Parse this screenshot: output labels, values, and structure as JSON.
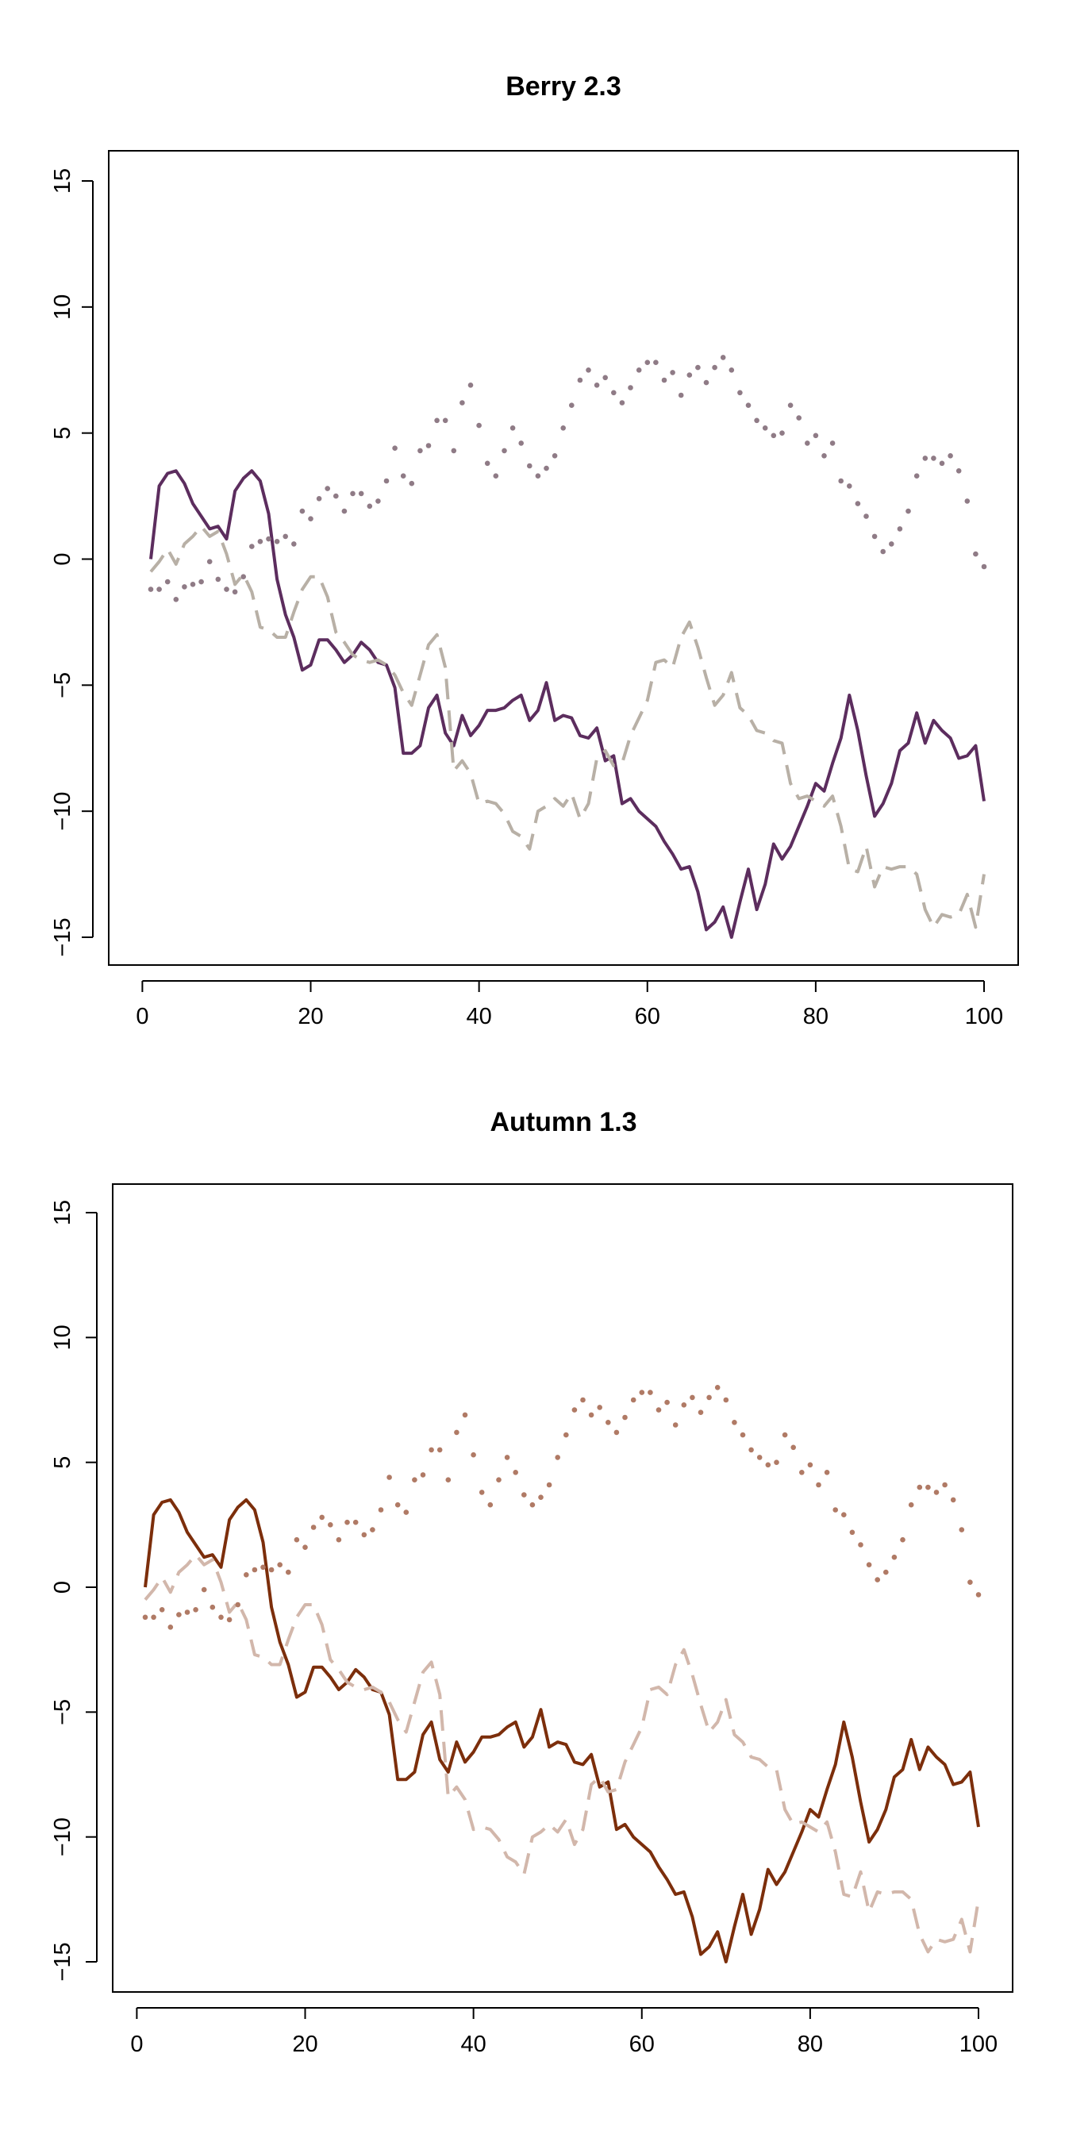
{
  "chart_data": [
    {
      "type": "line",
      "title": "Berry 2.3",
      "xlabel": "",
      "ylabel": "",
      "xlim": [
        1,
        100
      ],
      "ylim": [
        -15,
        15
      ],
      "x_ticks": [
        0,
        20,
        40,
        60,
        80,
        100
      ],
      "y_ticks": [
        -15,
        -10,
        -5,
        0,
        5,
        10,
        15
      ],
      "x_tick_labels": [
        "0",
        "20",
        "40",
        "60",
        "80",
        "100"
      ],
      "y_tick_labels": [
        "−15",
        "−10",
        "−5",
        "0",
        "5",
        "10",
        "15"
      ],
      "grid": false,
      "legend": "none",
      "x": [
        1,
        2,
        3,
        4,
        5,
        6,
        7,
        8,
        9,
        10,
        11,
        12,
        13,
        14,
        15,
        16,
        17,
        18,
        19,
        20,
        21,
        22,
        23,
        24,
        25,
        26,
        27,
        28,
        29,
        30,
        31,
        32,
        33,
        34,
        35,
        36,
        37,
        38,
        39,
        40,
        41,
        42,
        43,
        44,
        45,
        46,
        47,
        48,
        49,
        50,
        51,
        52,
        53,
        54,
        55,
        56,
        57,
        58,
        59,
        60,
        61,
        62,
        63,
        64,
        65,
        66,
        67,
        68,
        69,
        70,
        71,
        72,
        73,
        74,
        75,
        76,
        77,
        78,
        79,
        80,
        81,
        82,
        83,
        84,
        85,
        86,
        87,
        88,
        89,
        90,
        91,
        92,
        93,
        94,
        95,
        96,
        97,
        98,
        99,
        100
      ],
      "series": [
        {
          "style": "solid",
          "color": "#5c2d5e",
          "values": [
            0.0,
            2.9,
            3.4,
            3.5,
            3.0,
            2.2,
            1.7,
            1.2,
            1.3,
            0.8,
            2.7,
            3.2,
            3.5,
            3.1,
            1.8,
            -0.8,
            -2.2,
            -3.1,
            -4.4,
            -4.2,
            -3.2,
            -3.2,
            -3.6,
            -4.1,
            -3.8,
            -3.3,
            -3.6,
            -4.1,
            -4.2,
            -5.1,
            -7.7,
            -7.7,
            -7.4,
            -5.9,
            -5.4,
            -6.9,
            -7.4,
            -6.2,
            -7.0,
            -6.6,
            -6.0,
            -6.0,
            -5.9,
            -5.6,
            -5.4,
            -6.4,
            -6.0,
            -4.9,
            -6.4,
            -6.2,
            -6.3,
            -7.0,
            -7.1,
            -6.7,
            -8.0,
            -7.8,
            -9.7,
            -9.5,
            -10.0,
            -10.3,
            -10.6,
            -11.2,
            -11.7,
            -12.3,
            -12.2,
            -13.2,
            -14.7,
            -14.4,
            -13.8,
            -15.0,
            -13.6,
            -12.3,
            -13.9,
            -12.9,
            -11.3,
            -11.9,
            -11.4,
            -10.6,
            -9.8,
            -8.9,
            -9.2,
            -8.1,
            -7.1,
            -5.4,
            -6.8,
            -8.6,
            -10.2,
            -9.7,
            -8.9,
            -7.6,
            -7.3,
            -6.1,
            -7.3,
            -6.4,
            -6.8,
            -7.1,
            -7.9,
            -7.8,
            -7.4,
            -9.6
          ]
        },
        {
          "style": "dashed",
          "color": "#b8b0a6",
          "values": [
            -0.5,
            -0.1,
            0.4,
            -0.2,
            0.6,
            0.9,
            1.3,
            0.9,
            1.1,
            0.2,
            -1.0,
            -0.6,
            -1.3,
            -2.7,
            -2.8,
            -3.1,
            -3.1,
            -2.1,
            -1.2,
            -0.7,
            -0.7,
            -1.5,
            -2.9,
            -3.3,
            -3.8,
            -4.0,
            -4.1,
            -4.0,
            -4.2,
            -4.6,
            -5.3,
            -5.8,
            -4.6,
            -3.4,
            -3.0,
            -4.3,
            -8.4,
            -8.0,
            -8.5,
            -9.7,
            -9.6,
            -9.7,
            -10.1,
            -10.8,
            -11.0,
            -11.5,
            -10.0,
            -9.8,
            -9.5,
            -9.8,
            -9.3,
            -10.3,
            -9.7,
            -7.9,
            -7.6,
            -8.2,
            -8.1,
            -7.0,
            -6.3,
            -5.6,
            -4.1,
            -4.0,
            -4.3,
            -3.1,
            -2.5,
            -3.5,
            -4.7,
            -5.8,
            -5.4,
            -4.5,
            -5.9,
            -6.2,
            -6.8,
            -6.9,
            -7.2,
            -7.3,
            -8.9,
            -9.5,
            -9.4,
            -9.6,
            -9.8,
            -9.4,
            -10.6,
            -12.3,
            -12.4,
            -11.4,
            -13.0,
            -12.2,
            -12.3,
            -12.2,
            -12.2,
            -12.5,
            -13.9,
            -14.6,
            -14.1,
            -14.2,
            -14.1,
            -13.3,
            -14.6,
            -12.5
          ]
        },
        {
          "style": "dotted",
          "color": "#8f7b86",
          "values": [
            -1.2,
            -1.2,
            -0.9,
            -1.6,
            -1.1,
            -1.0,
            -0.9,
            -0.1,
            -0.8,
            -1.2,
            -1.3,
            -0.7,
            0.5,
            0.7,
            0.8,
            0.7,
            0.9,
            0.6,
            1.9,
            1.6,
            2.4,
            2.8,
            2.5,
            1.9,
            2.6,
            2.6,
            2.1,
            2.3,
            3.1,
            4.4,
            3.3,
            3.0,
            4.3,
            4.5,
            5.5,
            5.5,
            4.3,
            6.2,
            6.9,
            5.3,
            3.8,
            3.3,
            4.3,
            5.2,
            4.6,
            3.7,
            3.3,
            3.6,
            4.1,
            5.2,
            6.1,
            7.1,
            7.5,
            6.9,
            7.2,
            6.6,
            6.2,
            6.8,
            7.5,
            7.8,
            7.8,
            7.1,
            7.4,
            6.5,
            7.3,
            7.6,
            7.0,
            7.6,
            8.0,
            7.5,
            6.6,
            6.1,
            5.5,
            5.2,
            4.9,
            5.0,
            6.1,
            5.6,
            4.6,
            4.9,
            4.1,
            4.6,
            3.1,
            2.9,
            2.2,
            1.7,
            0.9,
            0.3,
            0.6,
            1.2,
            1.9,
            3.3,
            4.0,
            4.0,
            3.8,
            4.1,
            3.5,
            2.3,
            0.2,
            -0.3
          ]
        }
      ]
    },
    {
      "type": "line",
      "title": "Autumn 1.3",
      "xlabel": "",
      "ylabel": "",
      "xlim": [
        1,
        100
      ],
      "ylim": [
        -15,
        15
      ],
      "x_ticks": [
        0,
        20,
        40,
        60,
        80,
        100
      ],
      "y_ticks": [
        -15,
        -10,
        -5,
        0,
        5,
        10,
        15
      ],
      "x_tick_labels": [
        "0",
        "20",
        "40",
        "60",
        "80",
        "100"
      ],
      "y_tick_labels": [
        "−15",
        "−10",
        "−5",
        "0",
        "5",
        "10",
        "15"
      ],
      "grid": false,
      "legend": "none",
      "x": [
        1,
        2,
        3,
        4,
        5,
        6,
        7,
        8,
        9,
        10,
        11,
        12,
        13,
        14,
        15,
        16,
        17,
        18,
        19,
        20,
        21,
        22,
        23,
        24,
        25,
        26,
        27,
        28,
        29,
        30,
        31,
        32,
        33,
        34,
        35,
        36,
        37,
        38,
        39,
        40,
        41,
        42,
        43,
        44,
        45,
        46,
        47,
        48,
        49,
        50,
        51,
        52,
        53,
        54,
        55,
        56,
        57,
        58,
        59,
        60,
        61,
        62,
        63,
        64,
        65,
        66,
        67,
        68,
        69,
        70,
        71,
        72,
        73,
        74,
        75,
        76,
        77,
        78,
        79,
        80,
        81,
        82,
        83,
        84,
        85,
        86,
        87,
        88,
        89,
        90,
        91,
        92,
        93,
        94,
        95,
        96,
        97,
        98,
        99,
        100
      ],
      "series": [
        {
          "style": "solid",
          "color": "#7c2e0b",
          "values": [
            0.0,
            2.9,
            3.4,
            3.5,
            3.0,
            2.2,
            1.7,
            1.2,
            1.3,
            0.8,
            2.7,
            3.2,
            3.5,
            3.1,
            1.8,
            -0.8,
            -2.2,
            -3.1,
            -4.4,
            -4.2,
            -3.2,
            -3.2,
            -3.6,
            -4.1,
            -3.8,
            -3.3,
            -3.6,
            -4.1,
            -4.2,
            -5.1,
            -7.7,
            -7.7,
            -7.4,
            -5.9,
            -5.4,
            -6.9,
            -7.4,
            -6.2,
            -7.0,
            -6.6,
            -6.0,
            -6.0,
            -5.9,
            -5.6,
            -5.4,
            -6.4,
            -6.0,
            -4.9,
            -6.4,
            -6.2,
            -6.3,
            -7.0,
            -7.1,
            -6.7,
            -8.0,
            -7.8,
            -9.7,
            -9.5,
            -10.0,
            -10.3,
            -10.6,
            -11.2,
            -11.7,
            -12.3,
            -12.2,
            -13.2,
            -14.7,
            -14.4,
            -13.8,
            -15.0,
            -13.6,
            -12.3,
            -13.9,
            -12.9,
            -11.3,
            -11.9,
            -11.4,
            -10.6,
            -9.8,
            -8.9,
            -9.2,
            -8.1,
            -7.1,
            -5.4,
            -6.8,
            -8.6,
            -10.2,
            -9.7,
            -8.9,
            -7.6,
            -7.3,
            -6.1,
            -7.3,
            -6.4,
            -6.8,
            -7.1,
            -7.9,
            -7.8,
            -7.4,
            -9.6
          ]
        },
        {
          "style": "dashed",
          "color": "#d2b7ab",
          "values": [
            -0.5,
            -0.1,
            0.4,
            -0.2,
            0.6,
            0.9,
            1.3,
            0.9,
            1.1,
            0.2,
            -1.0,
            -0.6,
            -1.3,
            -2.7,
            -2.8,
            -3.1,
            -3.1,
            -2.1,
            -1.2,
            -0.7,
            -0.7,
            -1.5,
            -2.9,
            -3.3,
            -3.8,
            -4.0,
            -4.1,
            -4.0,
            -4.2,
            -4.6,
            -5.3,
            -5.8,
            -4.6,
            -3.4,
            -3.0,
            -4.3,
            -8.4,
            -8.0,
            -8.5,
            -9.7,
            -9.6,
            -9.7,
            -10.1,
            -10.8,
            -11.0,
            -11.5,
            -10.0,
            -9.8,
            -9.5,
            -9.8,
            -9.3,
            -10.3,
            -9.7,
            -7.9,
            -7.6,
            -8.2,
            -8.1,
            -7.0,
            -6.3,
            -5.6,
            -4.1,
            -4.0,
            -4.3,
            -3.1,
            -2.5,
            -3.5,
            -4.7,
            -5.8,
            -5.4,
            -4.5,
            -5.9,
            -6.2,
            -6.8,
            -6.9,
            -7.2,
            -7.3,
            -8.9,
            -9.5,
            -9.4,
            -9.6,
            -9.8,
            -9.4,
            -10.6,
            -12.3,
            -12.4,
            -11.4,
            -13.0,
            -12.2,
            -12.3,
            -12.2,
            -12.2,
            -12.5,
            -13.9,
            -14.6,
            -14.1,
            -14.2,
            -14.1,
            -13.3,
            -14.6,
            -12.5
          ]
        },
        {
          "style": "dotted",
          "color": "#b07a65",
          "values": [
            -1.2,
            -1.2,
            -0.9,
            -1.6,
            -1.1,
            -1.0,
            -0.9,
            -0.1,
            -0.8,
            -1.2,
            -1.3,
            -0.7,
            0.5,
            0.7,
            0.8,
            0.7,
            0.9,
            0.6,
            1.9,
            1.6,
            2.4,
            2.8,
            2.5,
            1.9,
            2.6,
            2.6,
            2.1,
            2.3,
            3.1,
            4.4,
            3.3,
            3.0,
            4.3,
            4.5,
            5.5,
            5.5,
            4.3,
            6.2,
            6.9,
            5.3,
            3.8,
            3.3,
            4.3,
            5.2,
            4.6,
            3.7,
            3.3,
            3.6,
            4.1,
            5.2,
            6.1,
            7.1,
            7.5,
            6.9,
            7.2,
            6.6,
            6.2,
            6.8,
            7.5,
            7.8,
            7.8,
            7.1,
            7.4,
            6.5,
            7.3,
            7.6,
            7.0,
            7.6,
            8.0,
            7.5,
            6.6,
            6.1,
            5.5,
            5.2,
            4.9,
            5.0,
            6.1,
            5.6,
            4.6,
            4.9,
            4.1,
            4.6,
            3.1,
            2.9,
            2.2,
            1.7,
            0.9,
            0.3,
            0.6,
            1.2,
            1.9,
            3.3,
            4.0,
            4.0,
            3.8,
            4.1,
            3.5,
            2.3,
            0.2,
            -0.3
          ]
        }
      ]
    }
  ]
}
